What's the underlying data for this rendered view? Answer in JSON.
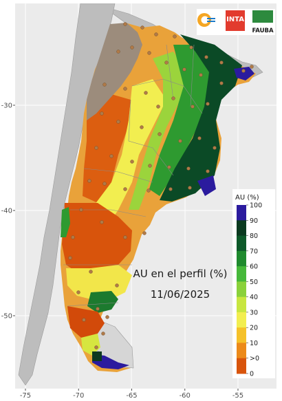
{
  "map": {
    "title_line1": "AU en el perfil (%)",
    "title_line2": "11/06/2025",
    "x_ticks": [
      "-75",
      "-70",
      "-65",
      "-60",
      "-55"
    ],
    "y_ticks": [
      "-30",
      "-40",
      "-50"
    ],
    "x_tick_values": [
      -75,
      -70,
      -65,
      -60,
      -55
    ],
    "y_tick_values": [
      -30,
      -40,
      -50
    ],
    "colors": {
      "panel_background": "#ebebeb",
      "land_gray": "#bdbdbd",
      "mountain_taupe": "#9c8c7c",
      "station_dot": "#b07a48"
    }
  },
  "legend": {
    "title": "AU (%)",
    "labels": [
      "100",
      "90",
      "80",
      "70",
      "60",
      "50",
      "40",
      "30",
      "20",
      "10",
      ">0",
      "0"
    ],
    "colors": [
      "#2b1b9e",
      "#0b3a20",
      "#0e5a2a",
      "#1f8a2e",
      "#46b83a",
      "#8ad13b",
      "#c8e640",
      "#f2ee50",
      "#f5c12a",
      "#ec8a1a",
      "#d8540c",
      "#c23b0a"
    ]
  },
  "logos": {
    "inta": "INTA",
    "fauba": "FAUBA"
  }
}
